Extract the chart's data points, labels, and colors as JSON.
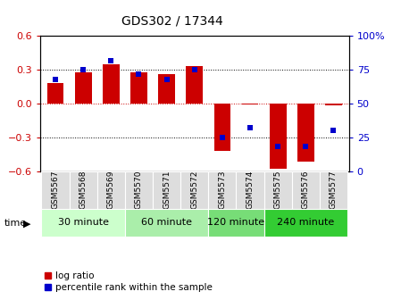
{
  "title": "GDS302 / 17344",
  "samples": [
    "GSM5567",
    "GSM5568",
    "GSM5569",
    "GSM5570",
    "GSM5571",
    "GSM5572",
    "GSM5573",
    "GSM5574",
    "GSM5575",
    "GSM5576",
    "GSM5577"
  ],
  "log_ratio": [
    0.18,
    0.28,
    0.35,
    0.28,
    0.26,
    0.33,
    -0.42,
    -0.01,
    -0.58,
    -0.52,
    -0.02
  ],
  "percentile_rank": [
    68,
    75,
    82,
    72,
    68,
    75,
    25,
    32,
    18,
    18,
    30
  ],
  "ylim_left": [
    -0.6,
    0.6
  ],
  "ylim_right": [
    0,
    100
  ],
  "yticks_left": [
    -0.6,
    -0.3,
    0,
    0.3,
    0.6
  ],
  "yticks_right": [
    0,
    25,
    50,
    75,
    100
  ],
  "bar_color": "#cc0000",
  "dot_color": "#0000cc",
  "groups": [
    {
      "label": "30 minute",
      "start": 0,
      "end": 2,
      "color": "#ccffcc"
    },
    {
      "label": "60 minute",
      "start": 3,
      "end": 5,
      "color": "#aaeeaa"
    },
    {
      "label": "120 minute",
      "start": 6,
      "end": 7,
      "color": "#77dd77"
    },
    {
      "label": "240 minute",
      "start": 8,
      "end": 10,
      "color": "#33cc33"
    }
  ],
  "legend_log_ratio": "log ratio",
  "legend_percentile": "percentile rank within the sample",
  "background_color": "#ffffff",
  "zero_line_color": "#cc0000",
  "grid_color": "#000000"
}
